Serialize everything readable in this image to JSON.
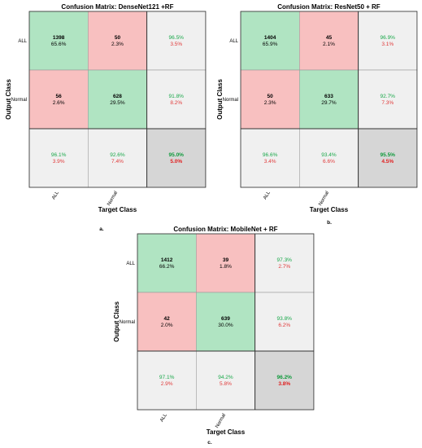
{
  "chart_data": [
    {
      "type": "heatmap",
      "title": "Confusion Matrix: DenseNet121 +RF",
      "xlabel": "Target Class",
      "ylabel": "Output Class",
      "classes": [
        "ALL",
        "Normal"
      ],
      "panel_label": "a.",
      "cells": [
        [
          {
            "count": "1398",
            "pct": "65.6%"
          },
          {
            "count": "50",
            "pct": "2.3%"
          }
        ],
        [
          {
            "count": "56",
            "pct": "2.6%"
          },
          {
            "count": "628",
            "pct": "29.5%"
          }
        ]
      ],
      "row_summary": [
        {
          "good": "96.5%",
          "bad": "3.5%"
        },
        {
          "good": "91.8%",
          "bad": "8.2%"
        }
      ],
      "col_summary": [
        {
          "good": "96.1%",
          "bad": "3.9%"
        },
        {
          "good": "92.6%",
          "bad": "7.4%"
        }
      ],
      "total": {
        "good": "95.0%",
        "bad": "5.0%"
      }
    },
    {
      "type": "heatmap",
      "title": "Confusion Matrix: ResNet50 + RF",
      "xlabel": "Target Class",
      "ylabel": "Output Class",
      "classes": [
        "ALL",
        "Normal"
      ],
      "panel_label": "b.",
      "cells": [
        [
          {
            "count": "1404",
            "pct": "65.9%"
          },
          {
            "count": "45",
            "pct": "2.1%"
          }
        ],
        [
          {
            "count": "50",
            "pct": "2.3%"
          },
          {
            "count": "633",
            "pct": "29.7%"
          }
        ]
      ],
      "row_summary": [
        {
          "good": "96.9%",
          "bad": "3.1%"
        },
        {
          "good": "92.7%",
          "bad": "7.3%"
        }
      ],
      "col_summary": [
        {
          "good": "96.6%",
          "bad": "3.4%"
        },
        {
          "good": "93.4%",
          "bad": "6.6%"
        }
      ],
      "total": {
        "good": "95.5%",
        "bad": "4.5%"
      }
    },
    {
      "type": "heatmap",
      "title": "Confusion Matrix: MobileNet + RF",
      "xlabel": "Target Class",
      "ylabel": "Output Class",
      "classes": [
        "ALL",
        "Normal"
      ],
      "panel_label": "c.",
      "cells": [
        [
          {
            "count": "1412",
            "pct": "66.2%"
          },
          {
            "count": "39",
            "pct": "1.8%"
          }
        ],
        [
          {
            "count": "42",
            "pct": "2.0%"
          },
          {
            "count": "639",
            "pct": "30.0%"
          }
        ]
      ],
      "row_summary": [
        {
          "good": "97.3%",
          "bad": "2.7%"
        },
        {
          "good": "93.8%",
          "bad": "6.2%"
        }
      ],
      "col_summary": [
        {
          "good": "97.1%",
          "bad": "2.9%"
        },
        {
          "good": "94.2%",
          "bad": "5.8%"
        }
      ],
      "total": {
        "good": "96.2%",
        "bad": "3.8%"
      }
    }
  ],
  "colors": {
    "correct_cell": "#b0e4c2",
    "wrong_cell": "#f8c0c0",
    "summary_cell": "#f0f0f0",
    "total_cell": "#d6d6d6",
    "good_text": "#1aa84a",
    "bad_text": "#e03a3a"
  }
}
